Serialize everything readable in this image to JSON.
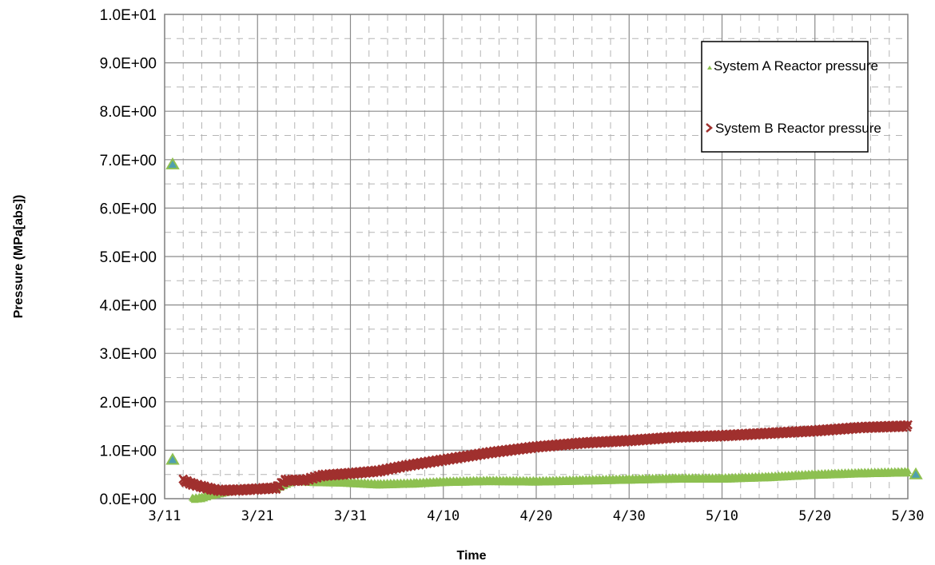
{
  "chart_data": {
    "type": "scatter",
    "title": "",
    "xlabel": "Time",
    "ylabel": "Pressure (MPa[abs])",
    "x_range": [
      "2011-03-11",
      "2011-05-30"
    ],
    "x_ticks": [
      "3/11",
      "3/21",
      "3/31",
      "4/10",
      "4/20",
      "4/30",
      "5/10",
      "5/20",
      "5/30"
    ],
    "y_range": [
      0,
      10
    ],
    "y_ticks": [
      "0.0E+00",
      "1.0E+00",
      "2.0E+00",
      "3.0E+00",
      "4.0E+00",
      "5.0E+00",
      "6.0E+00",
      "7.0E+00",
      "8.0E+00",
      "9.0E+00",
      "1.0E+01"
    ],
    "grid": true,
    "legend_position": "top-right",
    "series": [
      {
        "name": "System A Reactor pressure",
        "color": "#8DC050",
        "marker": "triangle",
        "outlier_points": [
          {
            "x": "2011-03-11",
            "y": 6.9
          },
          {
            "x": "2011-03-11",
            "y": 0.8
          },
          {
            "x": "2011-05-30",
            "y": 0.5
          }
        ],
        "points": [
          {
            "x": "2011-03-14",
            "y": 0.0
          },
          {
            "x": "2011-03-15",
            "y": 0.02
          },
          {
            "x": "2011-03-16",
            "y": 0.08
          },
          {
            "x": "2011-03-17",
            "y": 0.12
          },
          {
            "x": "2011-03-18",
            "y": 0.16
          },
          {
            "x": "2011-03-19",
            "y": 0.18
          },
          {
            "x": "2011-03-21",
            "y": 0.2
          },
          {
            "x": "2011-03-23",
            "y": 0.22
          },
          {
            "x": "2011-03-25",
            "y": 0.38
          },
          {
            "x": "2011-03-27",
            "y": 0.35
          },
          {
            "x": "2011-03-30",
            "y": 0.34
          },
          {
            "x": "2011-04-03",
            "y": 0.3
          },
          {
            "x": "2011-04-07",
            "y": 0.32
          },
          {
            "x": "2011-04-10",
            "y": 0.35
          },
          {
            "x": "2011-04-15",
            "y": 0.37
          },
          {
            "x": "2011-04-20",
            "y": 0.36
          },
          {
            "x": "2011-04-25",
            "y": 0.38
          },
          {
            "x": "2011-04-30",
            "y": 0.4
          },
          {
            "x": "2011-05-05",
            "y": 0.42
          },
          {
            "x": "2011-05-10",
            "y": 0.42
          },
          {
            "x": "2011-05-15",
            "y": 0.45
          },
          {
            "x": "2011-05-20",
            "y": 0.5
          },
          {
            "x": "2011-05-25",
            "y": 0.53
          },
          {
            "x": "2011-05-30",
            "y": 0.55
          }
        ]
      },
      {
        "name": "System B Reactor pressure",
        "color": "#A0302E",
        "marker": "x",
        "points": [
          {
            "x": "2011-03-13",
            "y": 0.38
          },
          {
            "x": "2011-03-14",
            "y": 0.3
          },
          {
            "x": "2011-03-15",
            "y": 0.25
          },
          {
            "x": "2011-03-16",
            "y": 0.2
          },
          {
            "x": "2011-03-17",
            "y": 0.17
          },
          {
            "x": "2011-03-19",
            "y": 0.18
          },
          {
            "x": "2011-03-21",
            "y": 0.2
          },
          {
            "x": "2011-03-23",
            "y": 0.22
          },
          {
            "x": "2011-03-24",
            "y": 0.38
          },
          {
            "x": "2011-03-26",
            "y": 0.38
          },
          {
            "x": "2011-03-28",
            "y": 0.48
          },
          {
            "x": "2011-03-31",
            "y": 0.52
          },
          {
            "x": "2011-04-03",
            "y": 0.57
          },
          {
            "x": "2011-04-06",
            "y": 0.68
          },
          {
            "x": "2011-04-10",
            "y": 0.8
          },
          {
            "x": "2011-04-15",
            "y": 0.95
          },
          {
            "x": "2011-04-20",
            "y": 1.07
          },
          {
            "x": "2011-04-25",
            "y": 1.15
          },
          {
            "x": "2011-04-30",
            "y": 1.2
          },
          {
            "x": "2011-05-05",
            "y": 1.27
          },
          {
            "x": "2011-05-10",
            "y": 1.3
          },
          {
            "x": "2011-05-15",
            "y": 1.35
          },
          {
            "x": "2011-05-20",
            "y": 1.4
          },
          {
            "x": "2011-05-25",
            "y": 1.47
          },
          {
            "x": "2011-05-30",
            "y": 1.5
          }
        ]
      }
    ]
  }
}
